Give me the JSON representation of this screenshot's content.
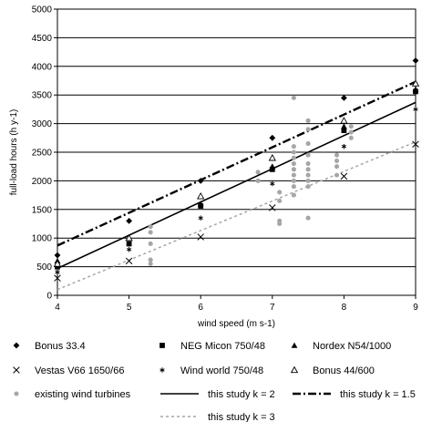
{
  "chart_data": {
    "type": "scatter",
    "xlabel": "wind speed (m s-1)",
    "ylabel": "full-load hours (h y-1)",
    "xlim": [
      4,
      9
    ],
    "ylim": [
      0,
      5000
    ],
    "xticks": [
      4,
      5,
      6,
      7,
      8,
      9
    ],
    "yticks": [
      0,
      500,
      1000,
      1500,
      2000,
      2500,
      3000,
      3500,
      4000,
      4500,
      5000
    ],
    "grid": "horizontal",
    "legend_position": "bottom",
    "series": [
      {
        "name": "Bonus 33.4",
        "marker": "diamond",
        "color": "#000000",
        "points": [
          [
            4,
            700
          ],
          [
            5,
            1300
          ],
          [
            6,
            2000
          ],
          [
            7,
            2750
          ],
          [
            8,
            3450
          ],
          [
            9,
            4100
          ]
        ]
      },
      {
        "name": "NEG Micon 750/48",
        "marker": "square",
        "color": "#000000",
        "points": [
          [
            4,
            500
          ],
          [
            5,
            900
          ],
          [
            6,
            1560
          ],
          [
            7,
            2200
          ],
          [
            8,
            2880
          ],
          [
            9,
            3560
          ]
        ]
      },
      {
        "name": "Nordex N54/1000",
        "marker": "triangle",
        "color": "#000000",
        "points": [
          [
            4,
            600
          ],
          [
            5,
            1000
          ],
          [
            6,
            1600
          ],
          [
            7,
            2250
          ],
          [
            8,
            2950
          ],
          [
            9,
            3600
          ]
        ]
      },
      {
        "name": "Vestas V66 1650/66",
        "marker": "x",
        "color": "#000000",
        "points": [
          [
            4,
            300
          ],
          [
            5,
            600
          ],
          [
            6,
            1020
          ],
          [
            7,
            1530
          ],
          [
            8,
            2080
          ],
          [
            9,
            2640
          ]
        ]
      },
      {
        "name": "Wind world 750/48",
        "marker": "asterisk",
        "color": "#000000",
        "points": [
          [
            4,
            400
          ],
          [
            5,
            800
          ],
          [
            6,
            1350
          ],
          [
            7,
            1950
          ],
          [
            8,
            2600
          ],
          [
            9,
            3250
          ]
        ]
      },
      {
        "name": "Bonus 44/600",
        "marker": "open-triangle",
        "color": "#000000",
        "points": [
          [
            4,
            550
          ],
          [
            5,
            1000
          ],
          [
            6,
            1730
          ],
          [
            7,
            2400
          ],
          [
            8,
            3050
          ],
          [
            9,
            3700
          ]
        ]
      },
      {
        "name": "existing wind turbines",
        "marker": "circle",
        "color": "#a6a6a6",
        "points": [
          [
            4,
            450
          ],
          [
            4,
            550
          ],
          [
            5.3,
            550
          ],
          [
            5.3,
            620
          ],
          [
            5.3,
            900
          ],
          [
            5.3,
            1100
          ],
          [
            5.3,
            1200
          ],
          [
            6.8,
            2000
          ],
          [
            6.8,
            2150
          ],
          [
            7.1,
            1300
          ],
          [
            7.1,
            1250
          ],
          [
            7.1,
            1650
          ],
          [
            7.1,
            1800
          ],
          [
            7.3,
            1750
          ],
          [
            7.3,
            1900
          ],
          [
            7.3,
            2000
          ],
          [
            7.3,
            2100
          ],
          [
            7.3,
            2200
          ],
          [
            7.3,
            2300
          ],
          [
            7.3,
            2400
          ],
          [
            7.3,
            2500
          ],
          [
            7.3,
            2600
          ],
          [
            7.3,
            3450
          ],
          [
            7.5,
            1350
          ],
          [
            7.5,
            1900
          ],
          [
            7.5,
            2000
          ],
          [
            7.5,
            2100
          ],
          [
            7.5,
            2200
          ],
          [
            7.5,
            2300
          ],
          [
            7.5,
            2450
          ],
          [
            7.5,
            2650
          ],
          [
            7.5,
            2900
          ],
          [
            7.5,
            3050
          ],
          [
            7.9,
            2100
          ],
          [
            7.9,
            2250
          ],
          [
            7.9,
            2350
          ],
          [
            7.9,
            2450
          ],
          [
            8.1,
            2750
          ],
          [
            8.1,
            2850
          ],
          [
            8.1,
            2950
          ]
        ]
      },
      {
        "name": "this study k = 2",
        "line": "solid",
        "color": "#000000",
        "points": [
          [
            4,
            470
          ],
          [
            9,
            3370
          ]
        ]
      },
      {
        "name": "this study k = 1.5",
        "line": "dash-dot",
        "color": "#000000",
        "points": [
          [
            4,
            870
          ],
          [
            9,
            3730
          ]
        ]
      },
      {
        "name": "this study k = 3",
        "line": "dotted",
        "color": "#a6a6a6",
        "points": [
          [
            4,
            100
          ],
          [
            9,
            2680
          ]
        ]
      }
    ]
  }
}
